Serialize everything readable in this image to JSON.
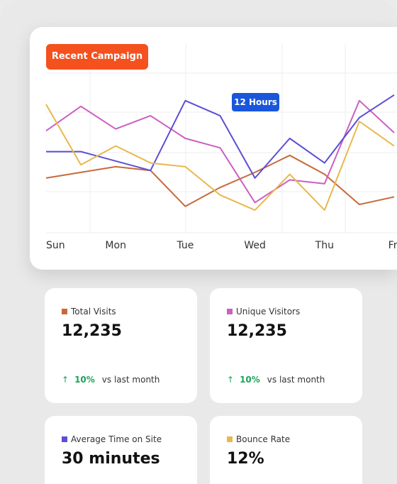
{
  "chart_data": {
    "type": "line",
    "categories": [
      "Sun",
      null,
      "Mon",
      null,
      "Tue",
      null,
      "Wed",
      null,
      "Thu",
      null,
      "Fri"
    ],
    "ylim": [
      0,
      100
    ],
    "grid": true,
    "series": [
      {
        "color": "#c8693a",
        "values": [
          29,
          32,
          35,
          33,
          14,
          24,
          32,
          41,
          31,
          15,
          19
        ]
      },
      {
        "color": "#cc5fc0",
        "values": [
          54,
          67,
          55,
          62,
          50,
          45,
          16,
          28,
          26,
          70,
          53
        ]
      },
      {
        "color": "#5b4fd6",
        "values": [
          43,
          43,
          38,
          33,
          70,
          62,
          29,
          50,
          37,
          61,
          73
        ]
      },
      {
        "color": "#e8b84d",
        "values": [
          68,
          36,
          46,
          37,
          35,
          20,
          12,
          31,
          12,
          59,
          46
        ]
      }
    ]
  },
  "badge": "Recent Campaign",
  "tooltip": "12 Hours",
  "cards": [
    {
      "label": "Total Visits",
      "value": "12,235",
      "change": "10%",
      "change_note": "vs last month"
    },
    {
      "label": "Unique Visitors",
      "value": "12,235",
      "change": "10%",
      "change_note": "vs last month"
    },
    {
      "label": "Average Time on Site",
      "value": "30 minutes"
    },
    {
      "label": "Bounce Rate",
      "value": "12%"
    }
  ]
}
